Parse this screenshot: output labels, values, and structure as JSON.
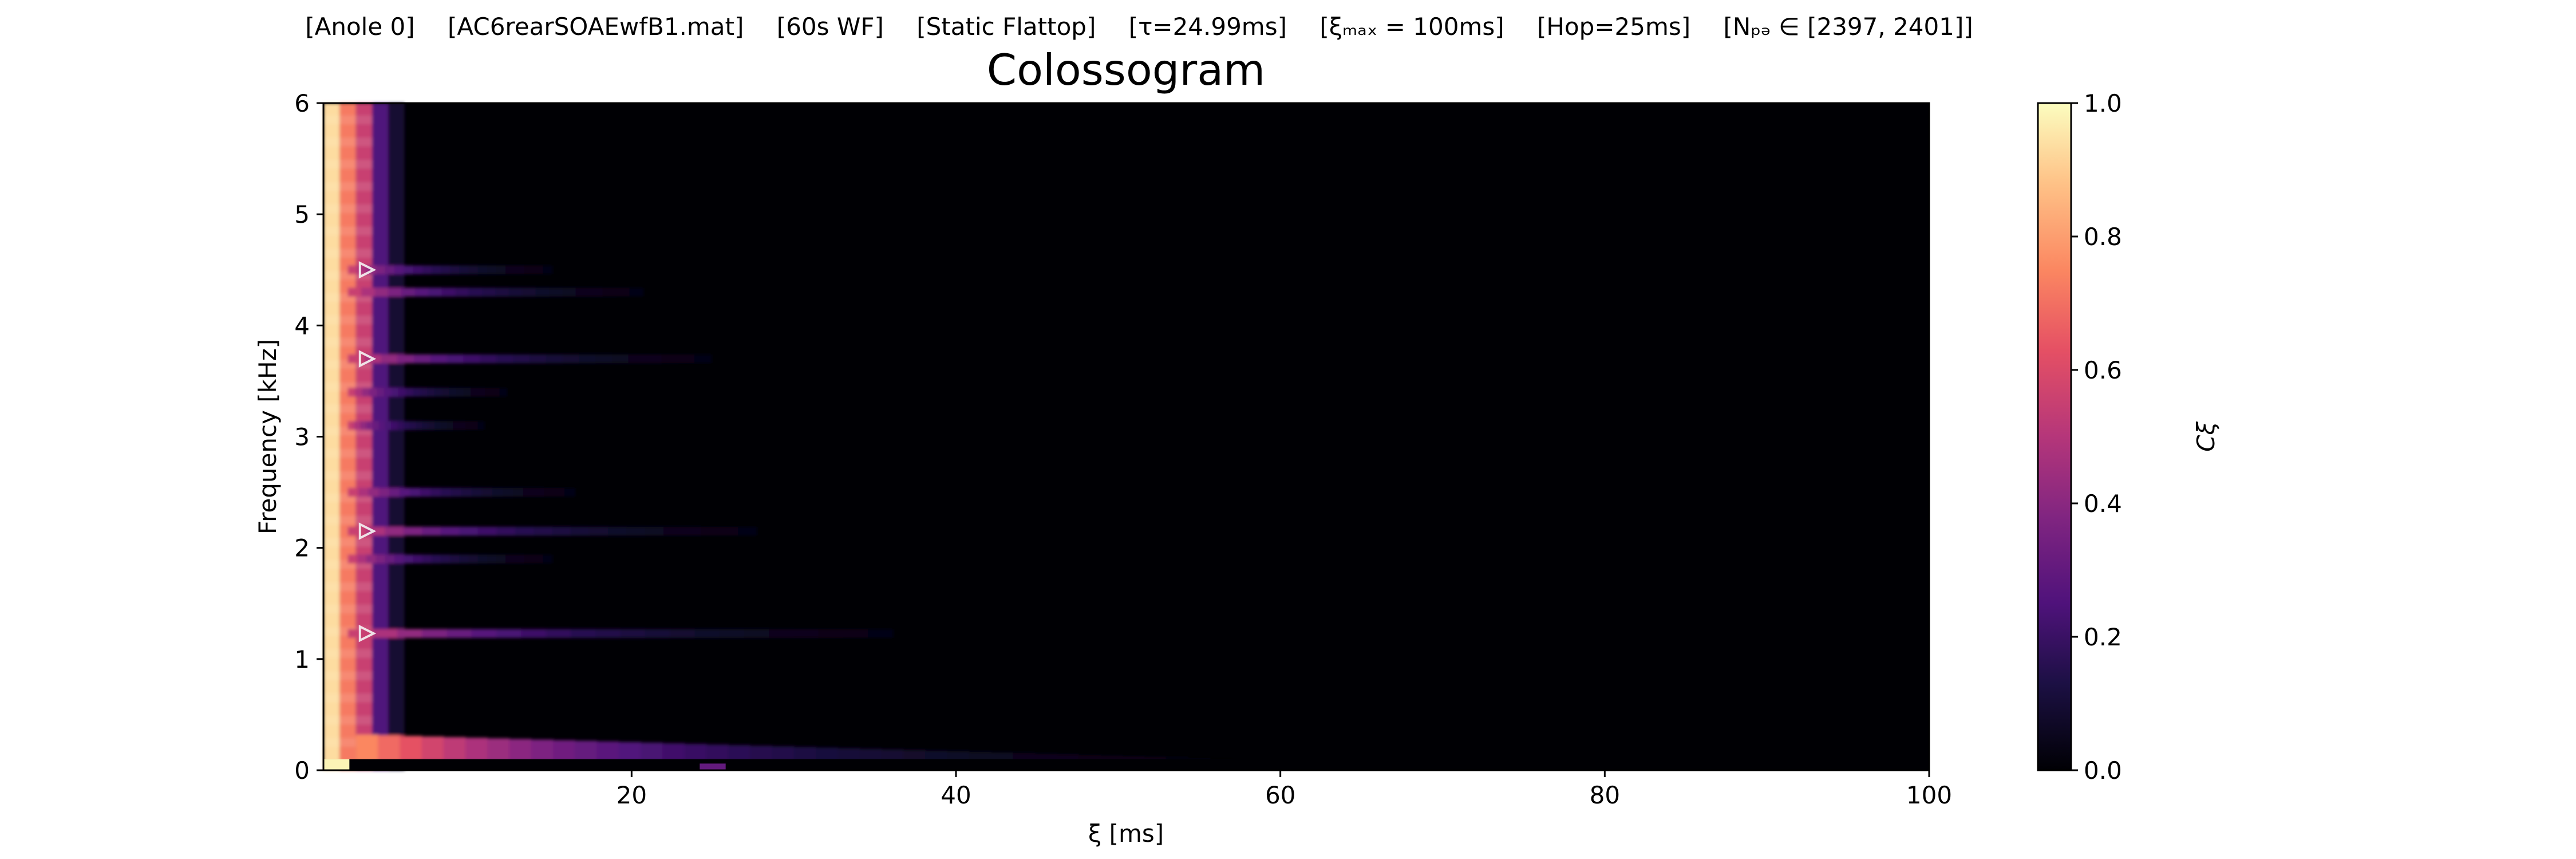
{
  "suptitle": {
    "seg1": "[Anole 0]",
    "seg2": "[AC6rearSOAEwfB1.mat]",
    "seg3": "[60s WF]",
    "seg4": "[Static Flattop]",
    "seg5": "[τ=24.99ms]",
    "seg6": "[ξₘₐₓ = 100ms]",
    "seg7": "[Hop=25ms]",
    "seg8": "[Nₚₔ ∈ [2397, 2401]]"
  },
  "chart_data": {
    "type": "heatmap",
    "title": "Colossogram",
    "xlabel": "ξ [ms]",
    "ylabel": "Frequency [kHz]",
    "xlim": [
      1,
      100
    ],
    "ylim": [
      0,
      6
    ],
    "x_ticks": [
      20,
      40,
      60,
      80,
      100
    ],
    "y_ticks": [
      0,
      1,
      2,
      3,
      4,
      5,
      6
    ],
    "colormap": "magma",
    "colorbar": {
      "label": "Cξ",
      "range": [
        0.0,
        1.0
      ],
      "ticks": [
        "0.0",
        "0.2",
        "0.4",
        "0.6",
        "0.8",
        "1.0"
      ]
    },
    "peak_markers_khz": [
      1.23,
      2.15,
      3.7,
      4.5
    ],
    "coherent_bands": [
      {
        "f_khz": 4.5,
        "decay_ms": 9
      },
      {
        "f_khz": 4.3,
        "decay_ms": 13
      },
      {
        "f_khz": 3.7,
        "decay_ms": 16
      },
      {
        "f_khz": 3.4,
        "decay_ms": 7
      },
      {
        "f_khz": 3.1,
        "decay_ms": 6
      },
      {
        "f_khz": 2.5,
        "decay_ms": 10
      },
      {
        "f_khz": 2.15,
        "decay_ms": 18
      },
      {
        "f_khz": 1.9,
        "decay_ms": 9
      },
      {
        "f_khz": 1.23,
        "decay_ms": 24
      }
    ],
    "low_freq_ridge_decay_ms": 30
  }
}
